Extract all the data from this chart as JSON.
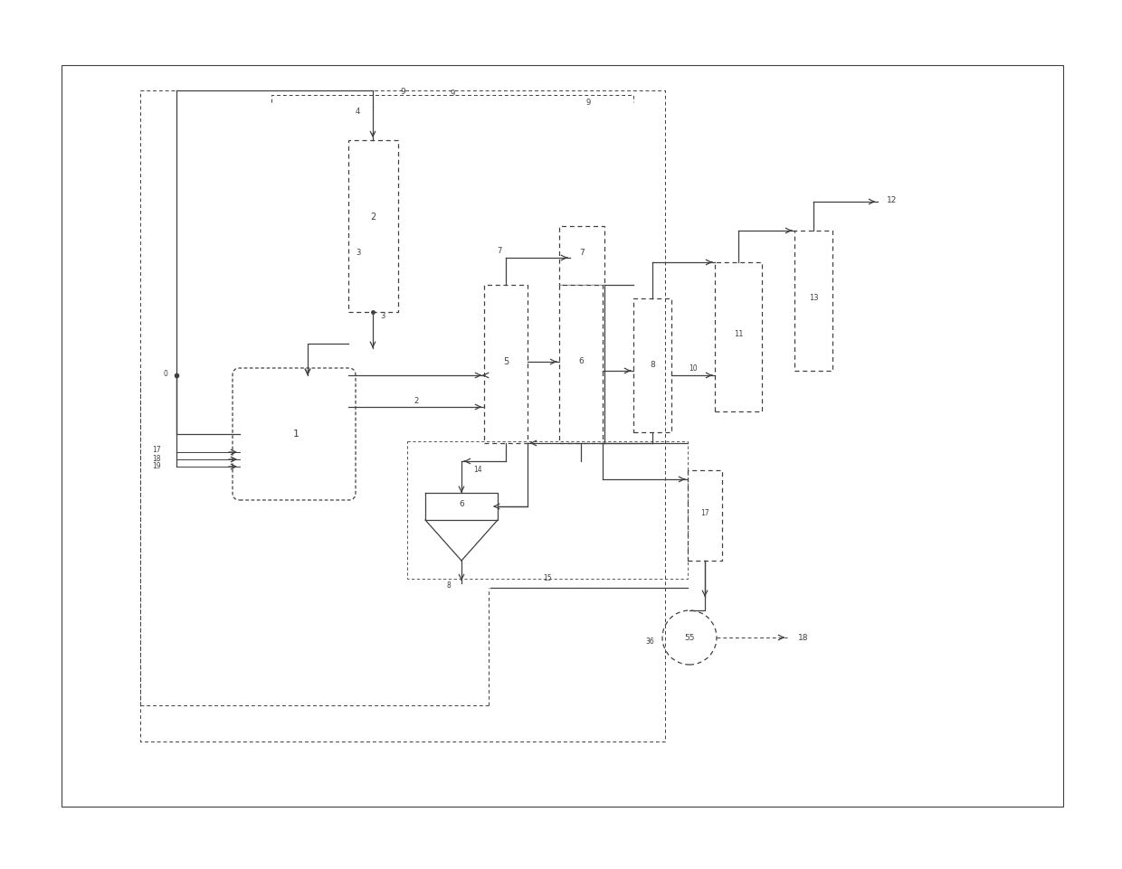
{
  "fig_width": 12.4,
  "fig_height": 9.61,
  "bg_color": "#ffffff",
  "lc": "#404040",
  "lw_main": 0.9,
  "lw_dash": 0.7,
  "fs_label": 6.0
}
